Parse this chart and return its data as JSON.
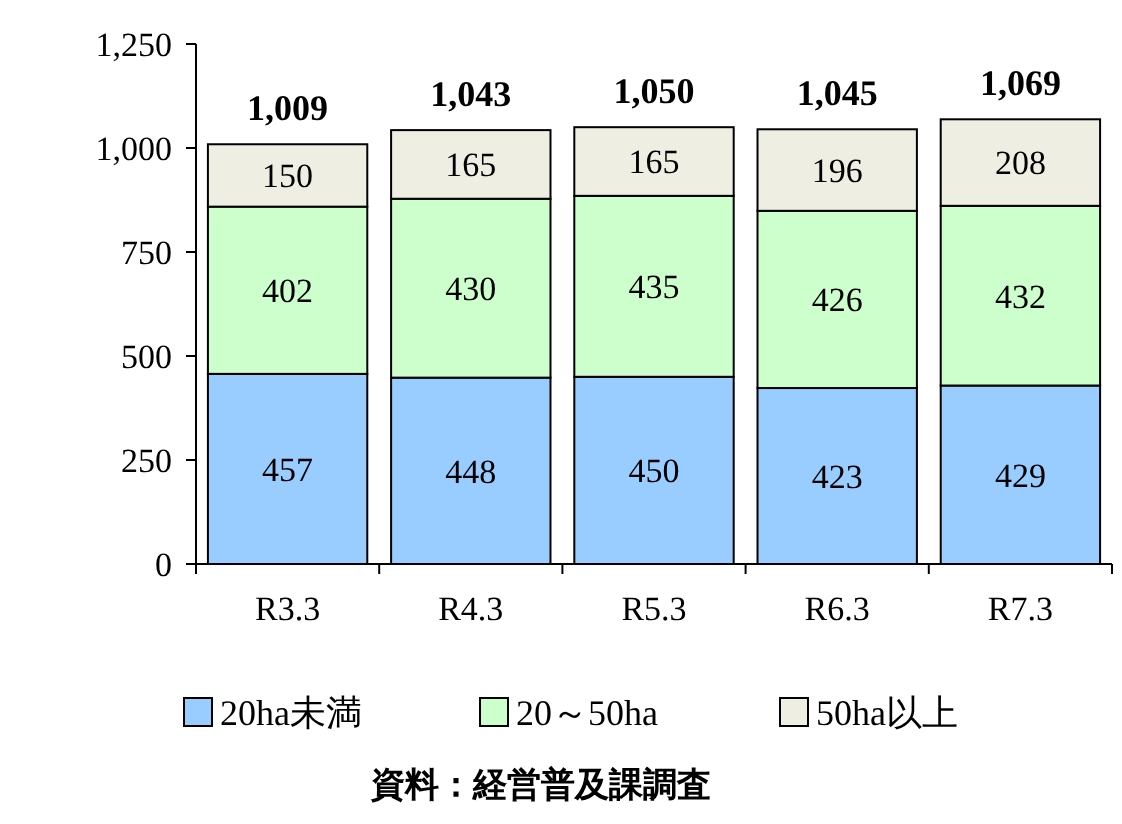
{
  "chart_data": {
    "type": "bar",
    "stacked": true,
    "categories": [
      "R3.3",
      "R4.3",
      "R5.3",
      "R6.3",
      "R7.3"
    ],
    "series": [
      {
        "name": "20ha未満",
        "color": "#99ccff",
        "values": [
          457,
          448,
          450,
          423,
          429
        ]
      },
      {
        "name": "20～50ha",
        "color": "#ccffcc",
        "values": [
          402,
          430,
          435,
          426,
          432
        ]
      },
      {
        "name": "50ha以上",
        "color": "#eeeee2",
        "values": [
          150,
          165,
          165,
          196,
          208
        ]
      }
    ],
    "data_labels": true,
    "totals": [
      "1,009",
      "1,043",
      "1,050",
      "1,045",
      "1,069"
    ],
    "ylim": [
      0,
      1250
    ],
    "yticks": [
      0,
      250,
      500,
      750,
      {
        "value": 1000,
        "label": "1,000"
      },
      {
        "value": 1250,
        "label": "1,250"
      }
    ],
    "grid": false,
    "legend": "bottom",
    "annotations": [
      "資料：経営普及課調査"
    ]
  }
}
